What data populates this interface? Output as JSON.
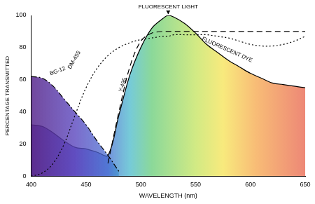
{
  "chart_data": {
    "type": "line",
    "x_label": "WAVELENGTH (nm)",
    "y_label": "PERCENTAGE TRANSMITTED",
    "x": [
      400,
      410,
      420,
      430,
      440,
      450,
      460,
      470,
      480,
      490,
      500,
      510,
      520,
      525,
      530,
      540,
      550,
      560,
      570,
      580,
      590,
      600,
      610,
      620,
      630,
      640,
      650
    ],
    "series": [
      {
        "name": "BG-12",
        "color": "#000000",
        "line_style": "dash_dot",
        "values": [
          62,
          61,
          56,
          48,
          40,
          32,
          22,
          13,
          3,
          null,
          null,
          null,
          null,
          null,
          null,
          null,
          null,
          null,
          null,
          null,
          null,
          null,
          null,
          null,
          null,
          null,
          null
        ]
      },
      {
        "name": "DM-455",
        "color": "#000000",
        "line_style": "dotted",
        "values": [
          0,
          2,
          8,
          20,
          38,
          55,
          67,
          75,
          80,
          83,
          85,
          86,
          87,
          87,
          88,
          88,
          88,
          88,
          87,
          86,
          84,
          82,
          81,
          81,
          82,
          84,
          87
        ]
      },
      {
        "name": "Y-495",
        "color": "#000000",
        "line_style": "dashed",
        "values": [
          null,
          null,
          null,
          null,
          null,
          null,
          null,
          8,
          40,
          68,
          84,
          89,
          90,
          90,
          90,
          90,
          90,
          90,
          90,
          90,
          90,
          90,
          90,
          90,
          90,
          90,
          90
        ]
      },
      {
        "name": "FLUORESCENT DYE",
        "color": "#000000",
        "line_style": "solid",
        "values": [
          32,
          31,
          27,
          22,
          18,
          17,
          15,
          13,
          38,
          63,
          80,
          92,
          98,
          100,
          99,
          95,
          89,
          82,
          77,
          72,
          68,
          64,
          61,
          58,
          57,
          56,
          55
        ]
      }
    ],
    "annotations": [
      {
        "text": "FLUORESCENT LIGHT",
        "x": 525,
        "y": 100
      }
    ],
    "xlim": [
      400,
      650
    ],
    "xticks": [
      400,
      450,
      500,
      550,
      600,
      650
    ],
    "ylim": [
      0,
      100
    ],
    "yticks": [
      0,
      20,
      40,
      60,
      80,
      100
    ],
    "grid": false
  }
}
